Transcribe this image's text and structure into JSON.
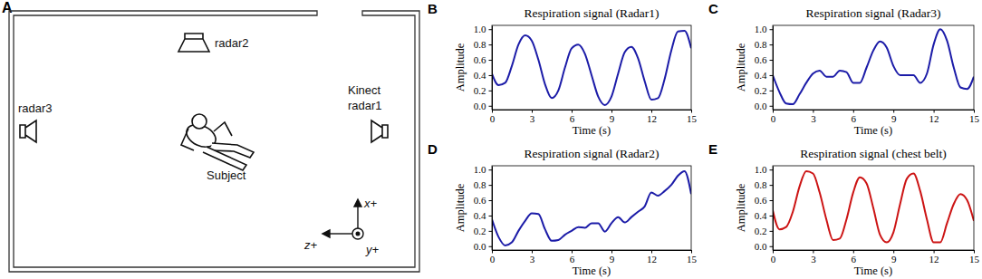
{
  "diagram": {
    "label": "A",
    "devices": [
      "radar2",
      "radar3",
      "Kinect",
      "radar1"
    ],
    "subject": "Subject",
    "axes": [
      "x+",
      "z+",
      "y+"
    ]
  },
  "chart_data": [
    {
      "type": "line",
      "annotation": "B",
      "title": "Respiration signal (Radar1)",
      "x_label": "Time (s)",
      "y_label": "Amplitude",
      "x": [
        0,
        0.5,
        1,
        1.5,
        2,
        2.5,
        3,
        3.5,
        4,
        4.5,
        5,
        5.5,
        6,
        6.5,
        7,
        7.5,
        8,
        8.5,
        9,
        9.5,
        10,
        10.5,
        11,
        11.5,
        12,
        12.5,
        13,
        13.5,
        14,
        14.5,
        15
      ],
      "series": [
        {
          "color": "#1c1ca8",
          "values": [
            0.42,
            0.27,
            0.3,
            0.52,
            0.8,
            0.92,
            0.85,
            0.6,
            0.28,
            0.1,
            0.2,
            0.5,
            0.75,
            0.8,
            0.68,
            0.4,
            0.12,
            0.01,
            0.12,
            0.42,
            0.7,
            0.77,
            0.62,
            0.32,
            0.08,
            0.1,
            0.35,
            0.72,
            0.97,
            0.98,
            0.75
          ]
        }
      ],
      "xlim": [
        0,
        15
      ],
      "xticks": [
        0,
        3,
        6,
        9,
        12,
        15
      ],
      "ylim": [
        -0.05,
        1.05
      ],
      "yticks": [
        {
          "value": 0,
          "label": "0.0"
        },
        0.2,
        0.4,
        0.6,
        0.8,
        {
          "value": 1,
          "label": "1.0"
        }
      ]
    },
    {
      "type": "line",
      "annotation": "C",
      "title": "Respiration signal (Radar3)",
      "x_label": "Time (s)",
      "y_label": "Amplitude",
      "x": [
        0,
        0.5,
        1,
        1.5,
        2,
        2.5,
        3,
        3.5,
        4,
        4.5,
        5,
        5.5,
        6,
        6.5,
        7,
        7.5,
        8,
        8.5,
        9,
        9.5,
        10,
        10.5,
        11,
        11.5,
        12,
        12.5,
        13,
        13.5,
        14,
        14.5,
        15
      ],
      "series": [
        {
          "color": "#1c1ca8",
          "values": [
            0.4,
            0.18,
            0.03,
            0.02,
            0.15,
            0.3,
            0.42,
            0.46,
            0.38,
            0.38,
            0.46,
            0.44,
            0.3,
            0.3,
            0.5,
            0.72,
            0.84,
            0.76,
            0.52,
            0.4,
            0.4,
            0.4,
            0.3,
            0.42,
            0.8,
            1.0,
            0.85,
            0.5,
            0.24,
            0.22,
            0.38
          ]
        }
      ],
      "xlim": [
        0,
        15
      ],
      "xticks": [
        0,
        3,
        6,
        9,
        12,
        15
      ],
      "ylim": [
        -0.05,
        1.05
      ],
      "yticks": [
        {
          "value": 0,
          "label": "0.0"
        },
        0.2,
        0.4,
        0.6,
        0.8,
        {
          "value": 1,
          "label": "1.0"
        }
      ]
    },
    {
      "type": "line",
      "annotation": "D",
      "title": "Respiration signal (Radar2)",
      "x_label": "Time (s)",
      "y_label": "Amplitude",
      "x": [
        0,
        0.5,
        1,
        1.5,
        2,
        2.5,
        3,
        3.5,
        4,
        4.5,
        5,
        5.5,
        6,
        6.5,
        7,
        7.5,
        8,
        8.5,
        9,
        9.5,
        10,
        10.5,
        11,
        11.5,
        12,
        12.5,
        13,
        13.5,
        14,
        14.5,
        15
      ],
      "series": [
        {
          "color": "#1c1ca8",
          "values": [
            0.35,
            0.12,
            0.01,
            0.05,
            0.2,
            0.33,
            0.43,
            0.42,
            0.22,
            0.07,
            0.08,
            0.15,
            0.2,
            0.25,
            0.24,
            0.3,
            0.3,
            0.19,
            0.3,
            0.38,
            0.31,
            0.38,
            0.45,
            0.52,
            0.7,
            0.66,
            0.72,
            0.8,
            0.92,
            0.98,
            0.68
          ]
        }
      ],
      "xlim": [
        0,
        15
      ],
      "xticks": [
        0,
        3,
        6,
        9,
        12,
        15
      ],
      "ylim": [
        -0.05,
        1.05
      ],
      "yticks": [
        {
          "value": 0,
          "label": "0.0"
        },
        0.2,
        0.4,
        0.6,
        0.8,
        {
          "value": 1,
          "label": "1.0"
        }
      ]
    },
    {
      "type": "line",
      "annotation": "E",
      "title": "Respiration signal (chest belt)",
      "x_label": "Time (s)",
      "y_label": "Amplitude",
      "x": [
        0,
        0.5,
        1,
        1.5,
        2,
        2.5,
        3,
        3.5,
        4,
        4.5,
        5,
        5.5,
        6,
        6.5,
        7,
        7.5,
        8,
        8.5,
        9,
        9.5,
        10,
        10.5,
        11,
        11.5,
        12,
        12.5,
        13,
        13.5,
        14,
        14.5,
        15
      ],
      "series": [
        {
          "color": "#cc1414",
          "values": [
            0.47,
            0.22,
            0.25,
            0.45,
            0.78,
            0.98,
            0.95,
            0.7,
            0.35,
            0.08,
            0.1,
            0.35,
            0.7,
            0.9,
            0.82,
            0.5,
            0.15,
            0.05,
            0.18,
            0.55,
            0.88,
            0.95,
            0.72,
            0.35,
            0.05,
            0.05,
            0.3,
            0.55,
            0.68,
            0.6,
            0.33
          ]
        }
      ],
      "xlim": [
        0,
        15
      ],
      "xticks": [
        0,
        3,
        6,
        9,
        12,
        15
      ],
      "ylim": [
        -0.05,
        1.05
      ],
      "yticks": [
        {
          "value": 0,
          "label": "0.0"
        },
        0.2,
        0.4,
        0.6,
        0.8,
        {
          "value": 1,
          "label": "1.0"
        }
      ]
    }
  ]
}
